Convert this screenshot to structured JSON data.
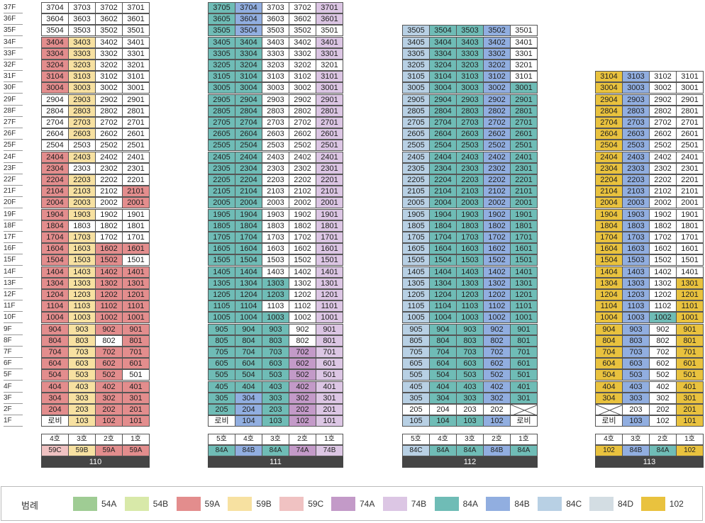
{
  "colors": {
    "54A": "#9fcc94",
    "54B": "#d8e9a9",
    "59A": "#e38d8d",
    "59B": "#f7e1a1",
    "59C": "#f0c2c2",
    "74A": "#c39ac8",
    "74B": "#dcc6e4",
    "84A": "#6fbcb6",
    "84B": "#91aee0",
    "84C": "#b8d0e4",
    "84D": "#d3dde3",
    "102": "#e9c23e"
  },
  "floors": [
    "37F",
    "36F",
    "35F",
    "34F",
    "33F",
    "32F",
    "31F",
    "30F",
    "29F",
    "28F",
    "27F",
    "26F",
    "25F",
    "24F",
    "23F",
    "22F",
    "21F",
    "20F",
    "19F",
    "18F",
    "17F",
    "16F",
    "15F",
    "14F",
    "13F",
    "12F",
    "11F",
    "10F",
    "9F",
    "8F",
    "7F",
    "6F",
    "5F",
    "4F",
    "3F",
    "2F",
    "1F"
  ],
  "lobby_label": "로비",
  "buildings": [
    {
      "name": "110",
      "top_floor": 37,
      "columns": [
        {
          "line": 4,
          "ho_label": "4호",
          "type": "59C",
          "lobby": true,
          "types": {
            "34": "59A",
            "33": "59A",
            "32": "59A",
            "31": "59A",
            "30": "59A",
            "24": "59A",
            "23": "59A",
            "22": "59A",
            "21": "59A",
            "20": "59A",
            "19": "59A",
            "18": "59A",
            "17": "59A",
            "16": "59A",
            "15": "59A",
            "14": "59A",
            "13": "59A",
            "12": "59A",
            "11": "59A",
            "10": "59A",
            "9": "59A",
            "8": "59A",
            "7": "59A",
            "6": "59A",
            "5": "59A",
            "4": "59A",
            "3": "59A",
            "2": "59A"
          }
        },
        {
          "line": 3,
          "ho_label": "3호",
          "type": "59B",
          "types": {
            "34": "59B",
            "33": "59B",
            "32": "59B",
            "31": "59B",
            "30": "59B",
            "29": "59B",
            "28": "59B",
            "27": "59B",
            "26": "59B",
            "24": "59B",
            "22": "59B",
            "21": "59B",
            "20": "59B",
            "19": "59B",
            "17": "59B",
            "16": "59B",
            "15": "59B",
            "14": "59B",
            "13": "59B",
            "12": "59B",
            "11": "59B",
            "10": "59B",
            "9": "59B",
            "8": "59B",
            "7": "59B",
            "6": "59B",
            "5": "59B",
            "4": "59B",
            "3": "59B",
            "2": "59B",
            "1": "59B"
          }
        },
        {
          "line": 2,
          "ho_label": "2호",
          "type": "59A",
          "types": {
            "16": "59A",
            "15": "59A",
            "14": "59A",
            "13": "59A",
            "12": "59A",
            "11": "59A",
            "10": "59A",
            "9": "59A",
            "7": "59A",
            "6": "59A",
            "5": "59A",
            "4": "59A",
            "3": "59A",
            "2": "59A",
            "1": "59A"
          }
        },
        {
          "line": 1,
          "ho_label": "1호",
          "type": "59A",
          "types": {
            "21": "59A",
            "20": "59A",
            "16": "59A",
            "14": "59A",
            "13": "59A",
            "12": "59A",
            "11": "59A",
            "10": "59A",
            "9": "59A",
            "8": "59A",
            "7": "59A",
            "6": "59A",
            "4": "59A",
            "3": "59A",
            "2": "59A",
            "1": "59A"
          }
        }
      ]
    },
    {
      "name": "111",
      "top_floor": 37,
      "columns": [
        {
          "line": 5,
          "ho_label": "5호",
          "type": "84A",
          "lobby": true,
          "default": "84A",
          "types": {
            "1": "none"
          }
        },
        {
          "line": 4,
          "ho_label": "4호",
          "type": "84B",
          "default": "84A",
          "types": {
            "37": "84B",
            "36": "84B",
            "35": "84B",
            "34": "84A",
            "3": "84B",
            "2": "84B",
            "1": "84B"
          }
        },
        {
          "line": 3,
          "ho_label": "3호",
          "type": "84A",
          "default": "none",
          "types": {
            "13": "84A",
            "12": "84A",
            "10": "84A",
            "9": "84A",
            "8": "84A",
            "7": "84A",
            "6": "84A",
            "5": "84A",
            "4": "84A",
            "3": "84A",
            "2": "84A",
            "1": "84A"
          }
        },
        {
          "line": 2,
          "ho_label": "2호",
          "type": "74A",
          "default": "none",
          "types": {
            "7": "74A",
            "6": "74A",
            "5": "74A",
            "4": "74A",
            "3": "74A",
            "2": "74A",
            "1": "74A"
          }
        },
        {
          "line": 1,
          "ho_label": "1호",
          "type": "74B",
          "default": "74B",
          "types": {
            "35": "none",
            "32": "none"
          }
        }
      ]
    },
    {
      "name": "112",
      "top_floor": 35,
      "columns": [
        {
          "line": 5,
          "ho_label": "5호",
          "type": "84C",
          "default": "84C",
          "types": {
            "2": "none"
          }
        },
        {
          "line": 4,
          "ho_label": "4호",
          "type": "84A",
          "default": "84A",
          "types": {
            "35": "84A",
            "2": "none"
          }
        },
        {
          "line": 3,
          "ho_label": "3호",
          "type": "84A",
          "default": "84A",
          "types": {
            "2": "none"
          }
        },
        {
          "line": 2,
          "ho_label": "2호",
          "type": "84B",
          "default": "84B",
          "types": {
            "2": "none"
          }
        },
        {
          "line": 1,
          "ho_label": "1호",
          "type": "84A",
          "lobby": true,
          "default": "84A",
          "types": {
            "35": "none",
            "34": "none",
            "33": "none",
            "32": "none",
            "31": "none",
            "2": "cross"
          }
        }
      ]
    },
    {
      "name": "113",
      "top_floor": 31,
      "columns": [
        {
          "line": 4,
          "ho_label": "4호",
          "type": "102",
          "lobby": true,
          "default": "102",
          "types": {
            "2": "cross"
          }
        },
        {
          "line": 3,
          "ho_label": "3호",
          "type": "84B",
          "default": "84B",
          "types": {
            "2": "none"
          }
        },
        {
          "line": 2,
          "ho_label": "2호",
          "type": "84A",
          "default": "none",
          "types": {
            "10": "84A"
          }
        },
        {
          "line": 1,
          "ho_label": "1호",
          "type": "102",
          "default": "none",
          "types": {
            "13": "102",
            "12": "102",
            "11": "102",
            "10": "102",
            "9": "102",
            "8": "102",
            "7": "102",
            "6": "102",
            "5": "102",
            "4": "102",
            "3": "102",
            "2": "102",
            "1": "102"
          }
        }
      ]
    }
  ],
  "legend": {
    "title": "범례",
    "items": [
      "54A",
      "54B",
      "59A",
      "59B",
      "59C",
      "74A",
      "74B",
      "84A",
      "84B",
      "84C",
      "84D",
      "102"
    ]
  }
}
